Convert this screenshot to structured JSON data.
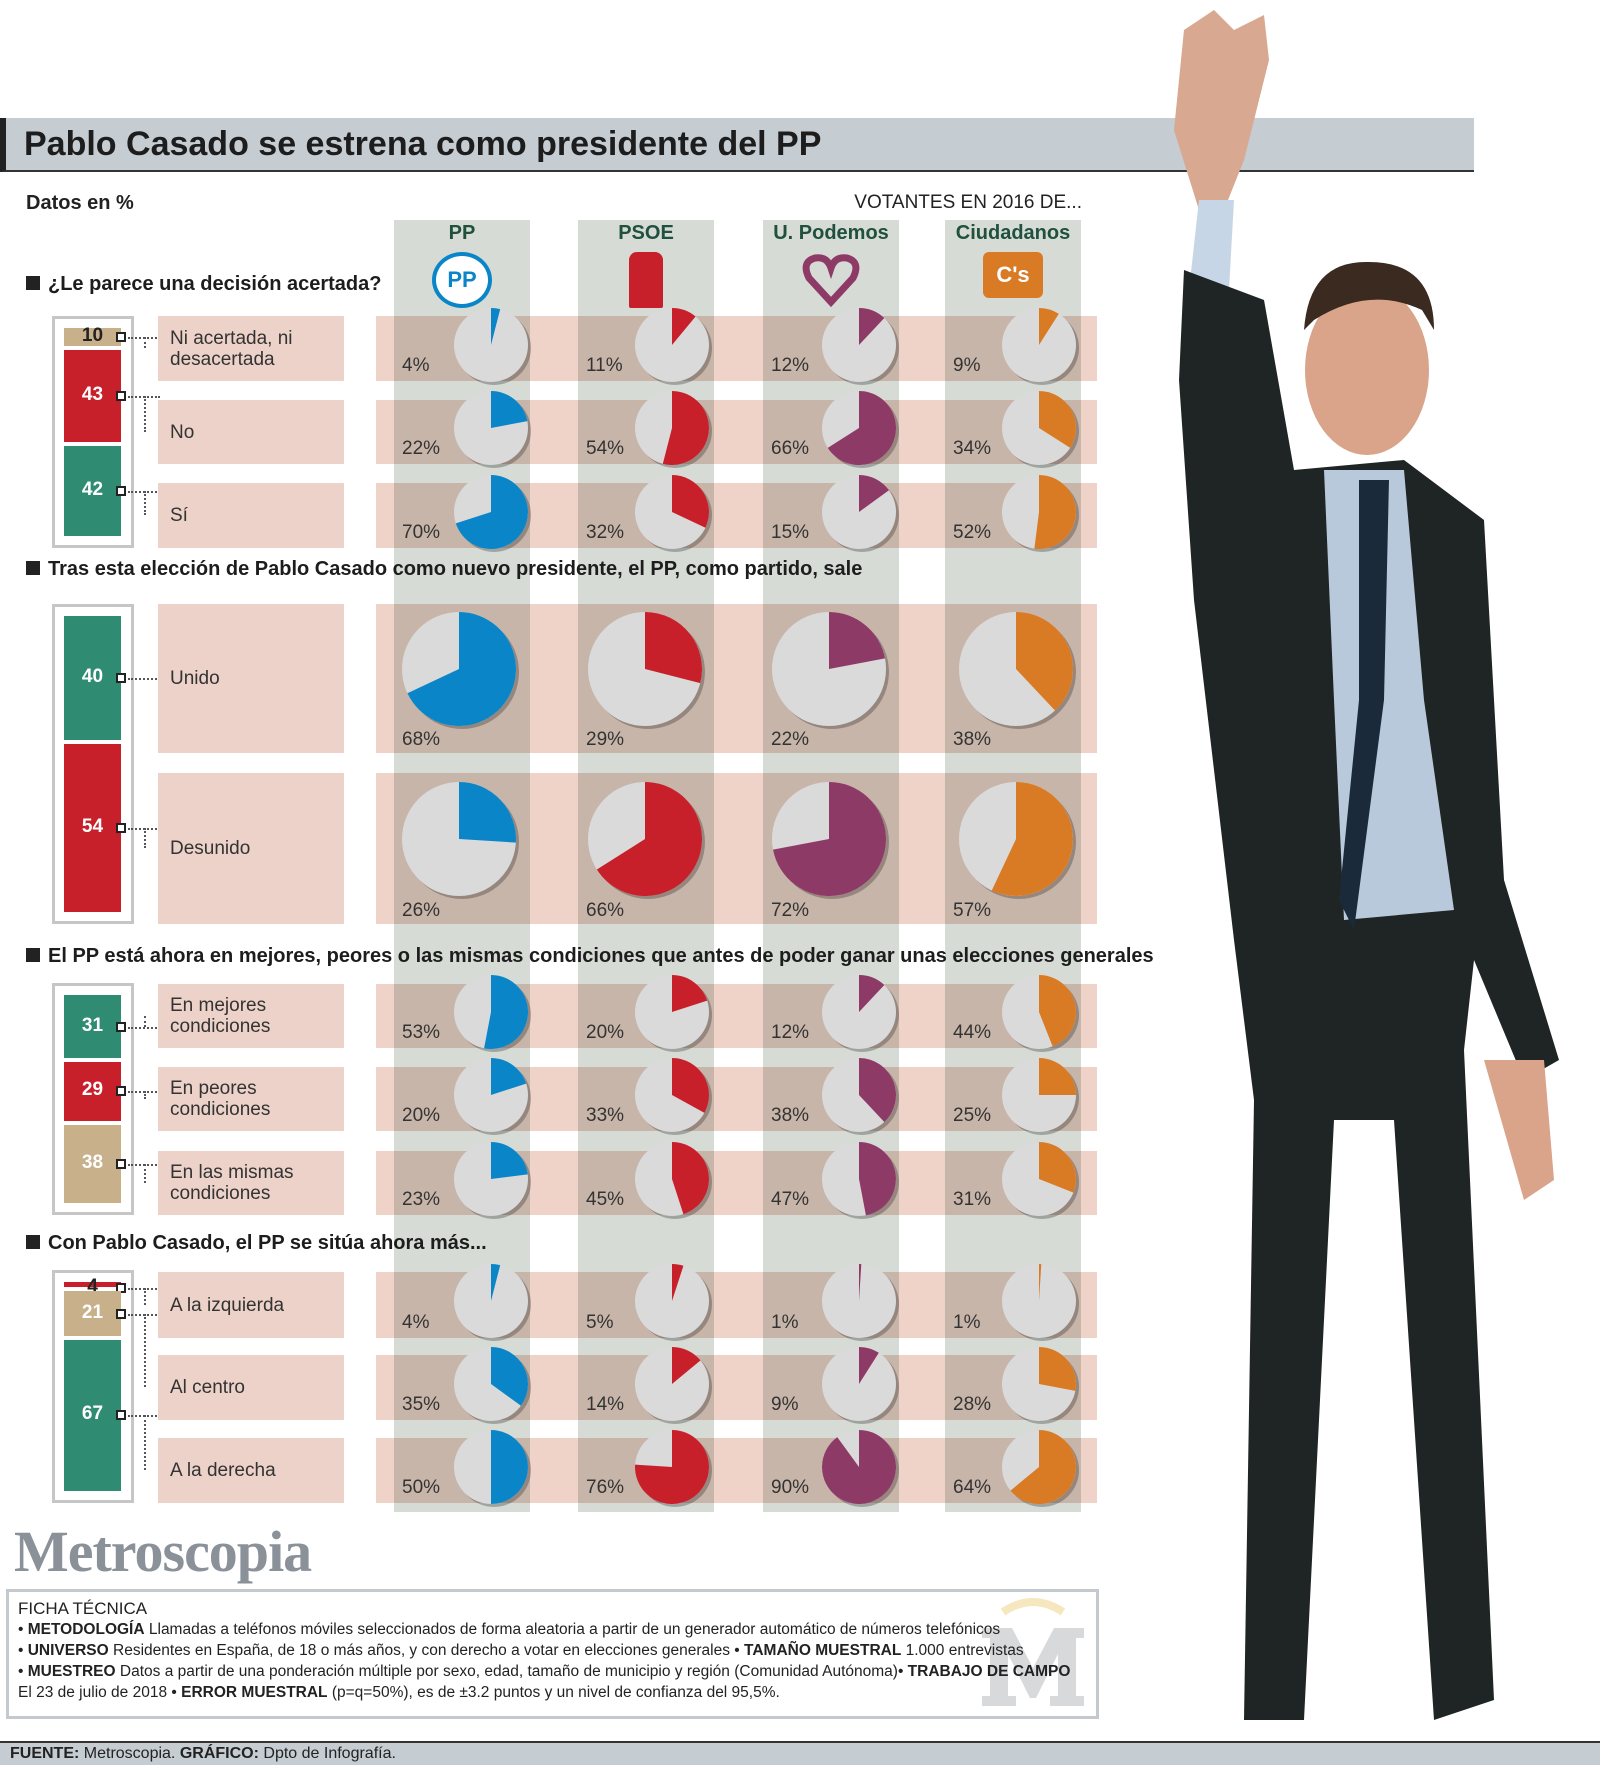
{
  "title": "Pablo Casado se estrena como presidente del PP",
  "units_note": "Datos en %",
  "columns_header": "VOTANTES EN 2016 DE...",
  "parties": [
    {
      "name": "PP",
      "logo": "PP",
      "color": "#0a86c8"
    },
    {
      "name": "PSOE",
      "logo": "",
      "color": "#c8202a"
    },
    {
      "name": "U. Podemos",
      "logo": "",
      "color": "#8e3a66"
    },
    {
      "name": "Ciudadanos",
      "logo": "C's",
      "color": "#d97b25"
    }
  ],
  "bar_palette": {
    "tan": "#c8b08a",
    "red": "#c8202a",
    "green": "#2f8c73"
  },
  "chart_data": {
    "type": "pie",
    "questions": [
      {
        "title": "¿Le parece una decisión acertada?",
        "overall": [
          10,
          43,
          42
        ],
        "overall_colors": [
          "tan",
          "red",
          "green"
        ],
        "rows": [
          {
            "label": "Ni acertada, ni desacertada",
            "values": [
              4,
              11,
              12,
              9
            ]
          },
          {
            "label": "No",
            "values": [
              22,
              54,
              66,
              34
            ]
          },
          {
            "label": "Sí",
            "values": [
              70,
              32,
              15,
              52
            ]
          }
        ]
      },
      {
        "title": "Tras esta elección de Pablo Casado como nuevo presidente, el PP, como partido, sale",
        "overall": [
          40,
          54
        ],
        "overall_colors": [
          "green",
          "red"
        ],
        "rows": [
          {
            "label": "Unido",
            "values": [
              68,
              29,
              22,
              38
            ]
          },
          {
            "label": "Desunido",
            "values": [
              26,
              66,
              72,
              57
            ]
          }
        ]
      },
      {
        "title": "El PP está ahora en mejores, peores o las mismas condiciones que antes de poder ganar unas elecciones generales",
        "overall": [
          31,
          29,
          38
        ],
        "overall_colors": [
          "green",
          "red",
          "tan"
        ],
        "rows": [
          {
            "label": "En mejores condiciones",
            "values": [
              53,
              20,
              12,
              44
            ]
          },
          {
            "label": "En peores condiciones",
            "values": [
              20,
              33,
              38,
              25
            ]
          },
          {
            "label": "En las mismas condiciones",
            "values": [
              23,
              45,
              47,
              31
            ]
          }
        ]
      },
      {
        "title": "Con Pablo Casado, el PP se sitúa ahora más...",
        "overall": [
          4,
          21,
          67
        ],
        "overall_colors": [
          "red",
          "tan",
          "green"
        ],
        "rows": [
          {
            "label": "A la izquierda",
            "values": [
              4,
              5,
              1,
              1
            ]
          },
          {
            "label": "Al centro",
            "values": [
              35,
              14,
              9,
              28
            ]
          },
          {
            "label": "A la derecha",
            "values": [
              50,
              76,
              90,
              64
            ]
          }
        ]
      }
    ]
  },
  "logo_text": "Metroscopia",
  "ficha": {
    "title": "FICHA TÉCNICA",
    "items": [
      {
        "k": "METODOLOGÍA",
        "v": "Llamadas a teléfonos móviles seleccionados de forma aleatoria a partir de un generador automático de números telefónicos"
      },
      {
        "k": "UNIVERSO",
        "v": "Residentes en España, de 18 o más años, y con derecho a votar en elecciones generales"
      },
      {
        "k": "TAMAÑO MUESTRAL",
        "v": "1.000 entrevistas"
      },
      {
        "k": "MUESTREO",
        "v": "Datos a partir de una ponderación múltiple por sexo, edad, tamaño de municipio y región (Comunidad Autónoma)"
      },
      {
        "k": "TRABAJO DE CAMPO",
        "v": "El 23 de julio de 2018"
      },
      {
        "k": "ERROR MUESTRAL",
        "v": "(p=q=50%), es de ±3.2  puntos y un nivel de confianza del 95,5%."
      }
    ],
    "watermark": "M"
  },
  "footer": {
    "k1": "FUENTE:",
    "v1": "Metroscopia.",
    "k2": "GRÁFICO:",
    "v2": "Dpto de Infografía."
  }
}
